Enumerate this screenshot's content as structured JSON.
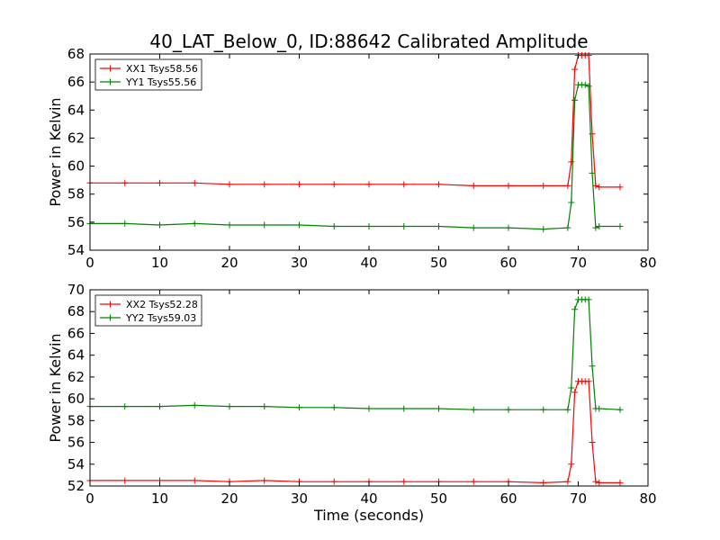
{
  "figure": {
    "title": "40_LAT_Below_0, ID:88642 Calibrated Amplitude",
    "xlabel": "Time (seconds)"
  },
  "colors": {
    "xx": "#ff0000",
    "yy": "#008000",
    "axes": "#000000",
    "background": "#ffffff"
  },
  "chart_data": [
    {
      "type": "line",
      "title": "40_LAT_Below_0, ID:88642 Calibrated Amplitude",
      "xlabel": "",
      "ylabel": "Power in Kelvin",
      "xlim": [
        0,
        80
      ],
      "ylim": [
        54,
        68
      ],
      "xticks": [
        "0",
        "10",
        "20",
        "30",
        "40",
        "50",
        "60",
        "70",
        "80"
      ],
      "yticks": [
        "54",
        "56",
        "58",
        "60",
        "62",
        "64",
        "66",
        "68"
      ],
      "grid": false,
      "legend_position": "top-left",
      "marker": "plus",
      "series": [
        {
          "name": "XX1 Tsys58.56",
          "color": "#ff0000",
          "x": [
            0,
            5,
            10,
            15,
            20,
            25,
            30,
            35,
            40,
            45,
            50,
            55,
            60,
            65,
            68.5,
            69.0,
            69.5,
            70.0,
            70.5,
            71.0,
            71.5,
            72.0,
            72.5,
            73.0,
            76
          ],
          "y": [
            58.8,
            58.8,
            58.8,
            58.8,
            58.7,
            58.7,
            58.7,
            58.7,
            58.7,
            58.7,
            58.7,
            58.6,
            58.6,
            58.6,
            58.6,
            60.3,
            66.9,
            67.9,
            67.9,
            67.9,
            67.9,
            62.3,
            58.6,
            58.5,
            58.5
          ]
        },
        {
          "name": "YY1 Tsys55.56",
          "color": "#008000",
          "x": [
            0,
            5,
            10,
            15,
            20,
            25,
            30,
            35,
            40,
            45,
            50,
            55,
            60,
            65,
            68.5,
            69.0,
            69.5,
            70.0,
            70.5,
            71.0,
            71.5,
            72.0,
            72.5,
            73.0,
            76
          ],
          "y": [
            55.9,
            55.9,
            55.8,
            55.9,
            55.8,
            55.8,
            55.8,
            55.7,
            55.7,
            55.7,
            55.7,
            55.6,
            55.6,
            55.5,
            55.6,
            57.4,
            64.7,
            65.8,
            65.8,
            65.8,
            65.7,
            59.5,
            55.6,
            55.7,
            55.7
          ]
        }
      ]
    },
    {
      "type": "line",
      "title": "",
      "xlabel": "Time (seconds)",
      "ylabel": "Power in Kelvin",
      "xlim": [
        0,
        80
      ],
      "ylim": [
        52,
        70
      ],
      "xticks": [
        "0",
        "10",
        "20",
        "30",
        "40",
        "50",
        "60",
        "70",
        "80"
      ],
      "yticks": [
        "52",
        "54",
        "56",
        "58",
        "60",
        "62",
        "64",
        "66",
        "68",
        "70"
      ],
      "grid": false,
      "legend_position": "top-left",
      "marker": "plus",
      "series": [
        {
          "name": "XX2 Tsys52.28",
          "color": "#ff0000",
          "x": [
            0,
            5,
            10,
            15,
            20,
            25,
            30,
            35,
            40,
            45,
            50,
            55,
            60,
            65,
            68.5,
            69.0,
            69.5,
            70.0,
            70.5,
            71.0,
            71.5,
            72.0,
            72.5,
            73.0,
            76
          ],
          "y": [
            52.5,
            52.5,
            52.5,
            52.5,
            52.4,
            52.5,
            52.4,
            52.4,
            52.4,
            52.4,
            52.4,
            52.4,
            52.4,
            52.3,
            52.4,
            54.0,
            60.6,
            61.6,
            61.6,
            61.6,
            61.6,
            56.0,
            52.4,
            52.3,
            52.3
          ]
        },
        {
          "name": "YY2 Tsys59.03",
          "color": "#008000",
          "x": [
            0,
            5,
            10,
            15,
            20,
            25,
            30,
            35,
            40,
            45,
            50,
            55,
            60,
            65,
            68.5,
            69.0,
            69.5,
            70.0,
            70.5,
            71.0,
            71.5,
            72.0,
            72.5,
            73.0,
            76
          ],
          "y": [
            59.3,
            59.3,
            59.3,
            59.4,
            59.3,
            59.3,
            59.2,
            59.2,
            59.1,
            59.1,
            59.1,
            59.0,
            59.0,
            59.0,
            59.0,
            61.0,
            68.2,
            69.1,
            69.1,
            69.1,
            69.1,
            63.0,
            59.1,
            59.1,
            59.0
          ]
        }
      ]
    }
  ]
}
